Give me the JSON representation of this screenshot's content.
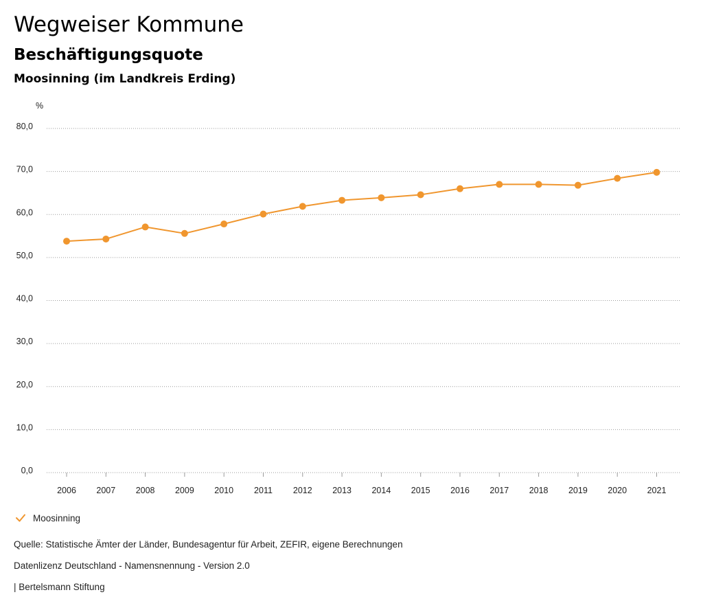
{
  "header": {
    "title": "Wegweiser Kommune",
    "subtitle": "Beschäftigungsquote",
    "region": "Moosinning (im Landkreis Erding)"
  },
  "legend": {
    "label": "Moosinning",
    "color": "#f0962e"
  },
  "footer": {
    "source": "Quelle: Statistische Ämter der Länder, Bundesagentur für Arbeit, ZEFIR, eigene Berechnungen",
    "license": "Datenlizenz Deutschland - Namensnennung - Version 2.0",
    "organization": "| Bertelsmann Stiftung"
  },
  "chart_data": {
    "type": "line",
    "title": "Beschäftigungsquote",
    "xlabel": "",
    "ylabel": "%",
    "ylim": [
      0,
      80
    ],
    "yticks": [
      0,
      10,
      20,
      30,
      40,
      50,
      60,
      70,
      80
    ],
    "ytick_labels": [
      "0,0",
      "10,0",
      "20,0",
      "30,0",
      "40,0",
      "50,0",
      "60,0",
      "70,0",
      "80,0"
    ],
    "grid": true,
    "categories": [
      "2006",
      "2007",
      "2008",
      "2009",
      "2010",
      "2011",
      "2012",
      "2013",
      "2014",
      "2015",
      "2016",
      "2017",
      "2018",
      "2019",
      "2020",
      "2021"
    ],
    "series": [
      {
        "name": "Moosinning",
        "color": "#f0962e",
        "values": [
          53.8,
          54.3,
          57.1,
          55.6,
          57.8,
          60.1,
          61.9,
          63.3,
          63.9,
          64.6,
          66.0,
          67.0,
          67.0,
          66.8,
          68.4,
          69.8
        ]
      }
    ]
  }
}
